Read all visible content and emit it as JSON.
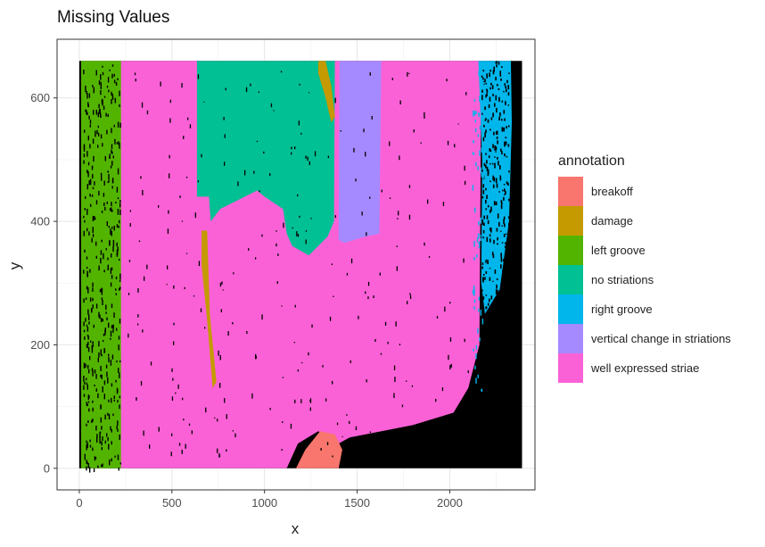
{
  "chart_data": {
    "type": "heatmap",
    "title": "Missing Values",
    "xlabel": "x",
    "ylabel": "y",
    "xlim": [
      -120,
      2460
    ],
    "ylim": [
      -35,
      695
    ],
    "x_ticks": [
      0,
      500,
      1000,
      1500,
      2000
    ],
    "y_ticks": [
      0,
      200,
      400,
      600
    ],
    "grid": true,
    "legend_title": "annotation",
    "legend_position": "right",
    "categories": [
      {
        "name": "breakoff",
        "color": "#F8766D"
      },
      {
        "name": "damage",
        "color": "#C49A00"
      },
      {
        "name": "left groove",
        "color": "#53B400"
      },
      {
        "name": "no striations",
        "color": "#00C094"
      },
      {
        "name": "right groove",
        "color": "#00B6EB"
      },
      {
        "name": "vertical change in striations",
        "color": "#A58AFF"
      },
      {
        "name": "well expressed striae",
        "color": "#FB61D7"
      }
    ],
    "missing_color": "#000000",
    "regions": [
      {
        "label": "missing",
        "color": "#000000",
        "polygon": [
          [
            0,
            0
          ],
          [
            2390,
            0
          ],
          [
            2390,
            660
          ],
          [
            0,
            660
          ]
        ]
      },
      {
        "label": "left groove",
        "color": "#53B400",
        "polygon": [
          [
            10,
            0
          ],
          [
            245,
            0
          ],
          [
            245,
            660
          ],
          [
            10,
            660
          ]
        ]
      },
      {
        "label": "well expressed striae",
        "color": "#FB61D7",
        "polygon": [
          [
            225,
            0
          ],
          [
            1120,
            0
          ],
          [
            1180,
            40
          ],
          [
            1290,
            60
          ],
          [
            1400,
            40
          ],
          [
            1460,
            50
          ],
          [
            1800,
            70
          ],
          [
            2020,
            90
          ],
          [
            2100,
            130
          ],
          [
            2160,
            200
          ],
          [
            2170,
            660
          ],
          [
            225,
            660
          ]
        ]
      },
      {
        "label": "no striations",
        "color": "#00C094",
        "polygon": [
          [
            635,
            660
          ],
          [
            1380,
            660
          ],
          [
            1375,
            400
          ],
          [
            1340,
            375
          ],
          [
            1290,
            360
          ],
          [
            1240,
            345
          ],
          [
            1150,
            360
          ],
          [
            1120,
            380
          ],
          [
            1100,
            420
          ],
          [
            1050,
            430
          ],
          [
            1000,
            440
          ],
          [
            960,
            450
          ],
          [
            760,
            420
          ],
          [
            710,
            400
          ],
          [
            700,
            440
          ],
          [
            635,
            440
          ]
        ]
      },
      {
        "label": "vertical change in striations",
        "color": "#A58AFF",
        "polygon": [
          [
            1405,
            660
          ],
          [
            1630,
            660
          ],
          [
            1620,
            380
          ],
          [
            1540,
            375
          ],
          [
            1430,
            365
          ],
          [
            1400,
            370
          ]
        ]
      },
      {
        "label": "damage",
        "color": "#C49A00",
        "polygon": [
          [
            1290,
            660
          ],
          [
            1330,
            660
          ],
          [
            1360,
            620
          ],
          [
            1380,
            570
          ],
          [
            1360,
            560
          ],
          [
            1330,
            600
          ],
          [
            1290,
            640
          ]
        ]
      },
      {
        "label": "damage",
        "color": "#C49A00",
        "polygon": [
          [
            660,
            385
          ],
          [
            690,
            385
          ],
          [
            705,
            250
          ],
          [
            740,
            140
          ],
          [
            720,
            130
          ],
          [
            690,
            240
          ],
          [
            660,
            330
          ]
        ]
      },
      {
        "label": "breakoff",
        "color": "#F8766D",
        "polygon": [
          [
            1170,
            0
          ],
          [
            1400,
            0
          ],
          [
            1420,
            30
          ],
          [
            1380,
            55
          ],
          [
            1300,
            60
          ],
          [
            1220,
            30
          ]
        ]
      },
      {
        "label": "right groove",
        "color": "#00B6EB",
        "polygon": [
          [
            2155,
            660
          ],
          [
            2330,
            660
          ],
          [
            2335,
            560
          ],
          [
            2320,
            400
          ],
          [
            2270,
            290
          ],
          [
            2190,
            250
          ],
          [
            2170,
            300
          ],
          [
            2175,
            500
          ]
        ]
      }
    ]
  }
}
